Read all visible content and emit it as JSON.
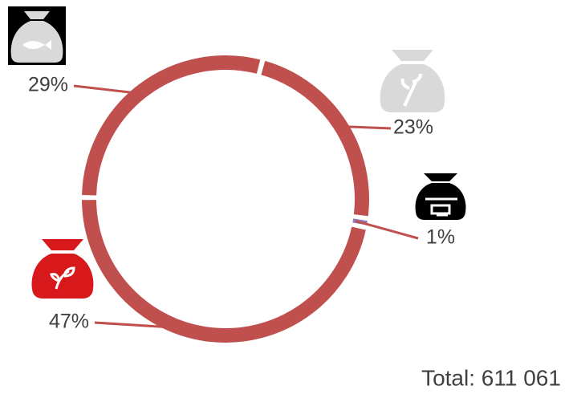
{
  "chart_data": {
    "type": "donut",
    "values": [
      23,
      1,
      47,
      29
    ],
    "value_labels": [
      "23%",
      "1%",
      "47%",
      "29%"
    ],
    "colors": [
      "#c0504d",
      "#8d7fc0",
      "#c0504d",
      "#c0504d"
    ],
    "total_label": "Total: 611 061"
  }
}
